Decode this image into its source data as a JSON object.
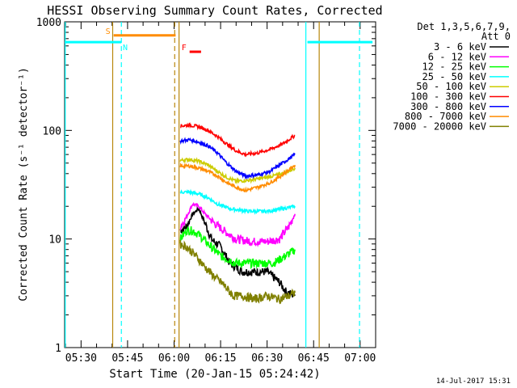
{
  "chart_data": {
    "type": "line",
    "title": "HESSI Observing Summary Count Rates, Corrected",
    "xlabel": "Start Time (20-Jan-15 05:24:42)",
    "ylabel": "Corrected Count Rate (s⁻¹ detector⁻¹)",
    "footer": "14-Jul-2017 15:31",
    "y_scale": "log",
    "ylim": [
      1,
      1000
    ],
    "y_ticks": [
      {
        "value": 1,
        "label": "1"
      },
      {
        "value": 10,
        "label": "10"
      },
      {
        "value": 100,
        "label": "100"
      },
      {
        "value": 1000,
        "label": "1000"
      }
    ],
    "x_range_minutes": [
      324.7,
      425
    ],
    "x_ticks": [
      {
        "value": 330,
        "label": "05:30"
      },
      {
        "value": 345,
        "label": "05:45"
      },
      {
        "value": 360,
        "label": "06:00"
      },
      {
        "value": 375,
        "label": "06:15"
      },
      {
        "value": 390,
        "label": "06:30"
      },
      {
        "value": 405,
        "label": "06:45"
      },
      {
        "value": 420,
        "label": "07:00"
      }
    ],
    "legend_header": [
      "Det 1,3,5,6,7,9,",
      "Att 0"
    ],
    "legend_position": "right",
    "series": [
      {
        "name": "3 - 6 keV",
        "color": "#000000",
        "points": [
          [
            362,
            12
          ],
          [
            364,
            13
          ],
          [
            366,
            17
          ],
          [
            368,
            19
          ],
          [
            370,
            14
          ],
          [
            372,
            10
          ],
          [
            375,
            8.5
          ],
          [
            378,
            6
          ],
          [
            382,
            5
          ],
          [
            386,
            5
          ],
          [
            390,
            5
          ],
          [
            394,
            4
          ],
          [
            396,
            3.3
          ],
          [
            399,
            3
          ]
        ]
      },
      {
        "name": "6 - 12 keV",
        "color": "#ff00ff",
        "points": [
          [
            362,
            13
          ],
          [
            364,
            16
          ],
          [
            366,
            21
          ],
          [
            368,
            20
          ],
          [
            370,
            17
          ],
          [
            373,
            14
          ],
          [
            376,
            12
          ],
          [
            380,
            10
          ],
          [
            385,
            9.5
          ],
          [
            390,
            9.5
          ],
          [
            394,
            10
          ],
          [
            397,
            13
          ],
          [
            399,
            17
          ]
        ]
      },
      {
        "name": "12 - 25 keV",
        "color": "#00ff00",
        "points": [
          [
            362,
            10
          ],
          [
            364,
            12
          ],
          [
            366,
            12
          ],
          [
            368,
            11
          ],
          [
            371,
            9
          ],
          [
            375,
            7
          ],
          [
            380,
            6
          ],
          [
            386,
            6
          ],
          [
            392,
            6
          ],
          [
            396,
            7
          ],
          [
            399,
            8
          ]
        ]
      },
      {
        "name": "25 - 50 keV",
        "color": "#00ffff",
        "points": [
          [
            362,
            27
          ],
          [
            365,
            27
          ],
          [
            368,
            26
          ],
          [
            371,
            24
          ],
          [
            374,
            21
          ],
          [
            378,
            19
          ],
          [
            384,
            18
          ],
          [
            390,
            18
          ],
          [
            395,
            19
          ],
          [
            399,
            20
          ]
        ]
      },
      {
        "name": "50 - 100 keV",
        "color": "#cccc00",
        "points": [
          [
            362,
            53
          ],
          [
            365,
            54
          ],
          [
            368,
            52
          ],
          [
            371,
            48
          ],
          [
            374,
            42
          ],
          [
            377,
            37
          ],
          [
            380,
            34
          ],
          [
            385,
            35
          ],
          [
            390,
            37
          ],
          [
            395,
            40
          ],
          [
            399,
            45
          ]
        ]
      },
      {
        "name": "100 - 300 keV",
        "color": "#ff0000",
        "points": [
          [
            362,
            110
          ],
          [
            365,
            112
          ],
          [
            368,
            108
          ],
          [
            371,
            100
          ],
          [
            374,
            88
          ],
          [
            377,
            75
          ],
          [
            380,
            65
          ],
          [
            383,
            60
          ],
          [
            387,
            62
          ],
          [
            391,
            67
          ],
          [
            395,
            75
          ],
          [
            399,
            90
          ]
        ]
      },
      {
        "name": "300 - 800 keV",
        "color": "#0000ff",
        "points": [
          [
            362,
            80
          ],
          [
            365,
            82
          ],
          [
            368,
            78
          ],
          [
            371,
            72
          ],
          [
            374,
            62
          ],
          [
            377,
            50
          ],
          [
            380,
            42
          ],
          [
            383,
            38
          ],
          [
            387,
            39
          ],
          [
            391,
            42
          ],
          [
            395,
            50
          ],
          [
            399,
            60
          ]
        ]
      },
      {
        "name": "800 - 7000 keV",
        "color": "#ff8c00",
        "points": [
          [
            362,
            47
          ],
          [
            365,
            47
          ],
          [
            368,
            45
          ],
          [
            371,
            42
          ],
          [
            374,
            38
          ],
          [
            377,
            33
          ],
          [
            380,
            30
          ],
          [
            383,
            28
          ],
          [
            387,
            30
          ],
          [
            391,
            33
          ],
          [
            395,
            39
          ],
          [
            399,
            48
          ]
        ]
      },
      {
        "name": "7000 - 20000 keV",
        "color": "#808000",
        "points": [
          [
            362,
            9
          ],
          [
            364,
            8.5
          ],
          [
            366,
            7.5
          ],
          [
            368,
            6.5
          ],
          [
            370,
            5.5
          ],
          [
            373,
            4.5
          ],
          [
            376,
            3.8
          ],
          [
            379,
            3
          ],
          [
            382,
            3
          ],
          [
            386,
            2.8
          ],
          [
            390,
            3
          ],
          [
            394,
            2.8
          ],
          [
            397,
            3
          ],
          [
            399,
            3.2
          ]
        ]
      }
    ],
    "flags": [
      {
        "label": "S",
        "color": "#ff8c00",
        "x_start": 340.5,
        "x_end": 360.5,
        "y": 750
      },
      {
        "label": "N",
        "color": "#00ffff",
        "x_start": 324.7,
        "x_end": 343,
        "y": 650
      },
      {
        "label": "F",
        "color": "#ff0000",
        "x_start": 365,
        "x_end": 368.7,
        "y": 530
      },
      {
        "label": "",
        "color": "#00ffff",
        "x_start": 403,
        "x_end": 424,
        "y": 650
      }
    ],
    "vertical_lines": [
      {
        "x": 324.9,
        "color": "#00ffff",
        "style": "solid"
      },
      {
        "x": 340.2,
        "color": "#b8860b",
        "style": "solid"
      },
      {
        "x": 343.0,
        "color": "#00ffff",
        "style": "dashed"
      },
      {
        "x": 360.2,
        "color": "#b8860b",
        "style": "dashed"
      },
      {
        "x": 361.6,
        "color": "#b8860b",
        "style": "solid"
      },
      {
        "x": 402.5,
        "color": "#00ffff",
        "style": "solid"
      },
      {
        "x": 406.8,
        "color": "#b8860b",
        "style": "solid"
      },
      {
        "x": 419.8,
        "color": "#00ffff",
        "style": "dashed"
      }
    ]
  }
}
